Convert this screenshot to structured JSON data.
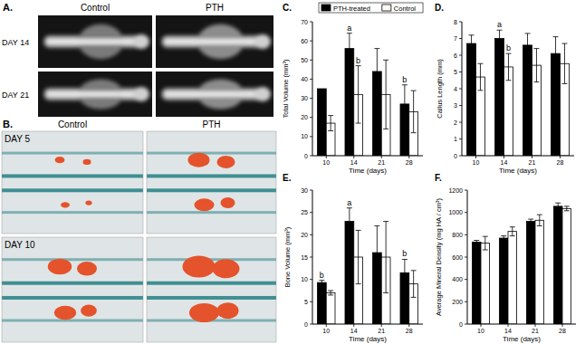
{
  "images": {
    "a": {
      "label": "A.",
      "columns": [
        "Control",
        "PTH"
      ],
      "rows": [
        "DAY 14",
        "DAY 21"
      ]
    },
    "b": {
      "label": "B.",
      "columns": [
        "Control",
        "PTH"
      ],
      "rows": [
        "DAY 5",
        "DAY 10"
      ]
    }
  },
  "chart_data": [
    {
      "type": "bar",
      "title": "C.",
      "x_label": "Time (days)",
      "y_label": "Total Volume (mm³)",
      "categories": [
        "10",
        "14",
        "21",
        "28"
      ],
      "series": [
        {
          "name": "PTH-treated",
          "color": "#000000",
          "values": [
            35,
            56,
            44,
            27
          ],
          "errors": [
            null,
            8,
            12,
            10
          ]
        },
        {
          "name": "Control",
          "color": "#ffffff",
          "values": [
            17,
            32,
            32,
            23
          ],
          "errors": [
            4,
            15,
            18,
            11
          ]
        }
      ],
      "ylim": [
        0,
        70
      ],
      "yticks": [
        0,
        10,
        20,
        30,
        40,
        50,
        60,
        70
      ],
      "legend": "top",
      "annotations": [
        {
          "text": "a",
          "series": 0,
          "index": 1
        },
        {
          "text": "b",
          "series": 1,
          "index": 1
        },
        {
          "text": "b",
          "series": 0,
          "index": 3
        }
      ]
    },
    {
      "type": "bar",
      "title": "D.",
      "x_label": "Time (days)",
      "y_label": "Callus Length (mm)",
      "categories": [
        "10",
        "14",
        "21",
        "28"
      ],
      "series": [
        {
          "color": "#000000",
          "values": [
            6.7,
            7.0,
            6.6,
            6.1
          ],
          "errors": [
            0.5,
            0.5,
            0.7,
            1.0
          ]
        },
        {
          "color": "#ffffff",
          "values": [
            4.7,
            5.3,
            5.4,
            5.5
          ],
          "errors": [
            0.8,
            0.8,
            1.0,
            1.2
          ]
        }
      ],
      "ylim": [
        0,
        8
      ],
      "yticks": [
        0,
        1,
        2,
        3,
        4,
        5,
        6,
        7,
        8
      ],
      "annotations": [
        {
          "text": "a",
          "series": 0,
          "index": 1
        },
        {
          "text": "b",
          "series": 1,
          "index": 1
        }
      ]
    },
    {
      "type": "bar",
      "title": "E.",
      "x_label": "Time (days)",
      "y_label": "Bone Volume (mm³)",
      "categories": [
        "10",
        "14",
        "21",
        "28"
      ],
      "series": [
        {
          "color": "#000000",
          "values": [
            9.3,
            23,
            16,
            11.5
          ],
          "errors": [
            0.5,
            3,
            6,
            3
          ]
        },
        {
          "color": "#ffffff",
          "values": [
            7,
            15,
            15,
            9
          ],
          "errors": [
            0.5,
            6,
            8,
            3
          ]
        }
      ],
      "ylim": [
        0,
        30
      ],
      "yticks": [
        0,
        5,
        10,
        15,
        20,
        25,
        30
      ],
      "annotations": [
        {
          "text": "b",
          "series": 0,
          "index": 0
        },
        {
          "text": "a",
          "series": 0,
          "index": 1
        },
        {
          "text": "b",
          "series": 0,
          "index": 3
        }
      ]
    },
    {
      "type": "bar",
      "title": "F.",
      "x_label": "Time (days)",
      "y_label": "Average Mineral Density (mg HA / cm³)",
      "categories": [
        "10",
        "14",
        "21",
        "28"
      ],
      "series": [
        {
          "color": "#000000",
          "values": [
            735,
            770,
            920,
            1055
          ],
          "errors": [
            15,
            20,
            20,
            30
          ]
        },
        {
          "color": "#ffffff",
          "values": [
            725,
            830,
            930,
            1035
          ],
          "errors": [
            60,
            40,
            50,
            20
          ]
        }
      ],
      "ylim": [
        0,
        1200
      ],
      "yticks": [
        0,
        200,
        400,
        600,
        800,
        1000,
        1200
      ]
    }
  ]
}
